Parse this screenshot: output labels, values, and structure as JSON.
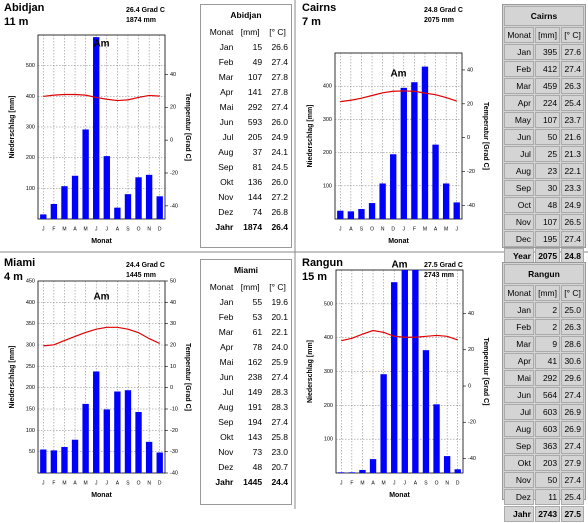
{
  "chart_data": [
    {
      "type": "bar",
      "name": "Abidjan",
      "elevation": "11 m",
      "temp_label": "26.4 Grad C",
      "precip_label": "1874 mm",
      "title": "Am",
      "ylabel": "Niederschlag [mm]",
      "y2label": "Temperatur [Grad C]",
      "xlabel": "Monat",
      "categories": [
        "J",
        "F",
        "M",
        "A",
        "M",
        "J",
        "J",
        "A",
        "S",
        "O",
        "N",
        "D"
      ],
      "series": [
        {
          "color": "#0000ff",
          "values": [
            15,
            49,
            107,
            141,
            292,
            593,
            205,
            37,
            81,
            136,
            144,
            74
          ]
        },
        {
          "type": "line",
          "axis": "y2",
          "color": "#e00000",
          "values": [
            26.6,
            27.4,
            27.8,
            27.8,
            27.4,
            26.0,
            24.9,
            24.1,
            24.5,
            26.0,
            27.2,
            26.8
          ]
        }
      ],
      "ylim": [
        0,
        600
      ],
      "yticks": [
        100,
        200,
        300,
        400,
        500
      ],
      "y2lim": [
        -48,
        64
      ],
      "y2ticks": [
        -40,
        -20,
        0,
        20,
        40
      ],
      "grid": true
    },
    {
      "type": "bar",
      "name": "Cairns",
      "elevation": "7 m",
      "temp_label": "24.8 Grad C",
      "precip_label": "2075 mm",
      "title": "Am",
      "ylabel": "Niederschlag [mm]",
      "y2label": "Temperatur [Grad C]",
      "xlabel": "Monat",
      "categories": [
        "J",
        "A",
        "S",
        "O",
        "N",
        "D",
        "J",
        "F",
        "M",
        "A",
        "M",
        "J"
      ],
      "series": [
        {
          "color": "#0000ff",
          "values": [
            25,
            23,
            30,
            48,
            107,
            195,
            395,
            412,
            459,
            224,
            107,
            50
          ]
        },
        {
          "type": "line",
          "axis": "y2",
          "color": "#e00000",
          "values": [
            21.3,
            22.1,
            23.3,
            24.9,
            26.5,
            27.4,
            27.6,
            27.4,
            26.3,
            25.4,
            23.7,
            21.6
          ]
        }
      ],
      "ylim": [
        0,
        500
      ],
      "yticks": [
        100,
        200,
        300,
        400
      ],
      "y2lim": [
        -48,
        50
      ],
      "y2ticks": [
        -40,
        -20,
        0,
        20,
        40
      ],
      "grid": true
    },
    {
      "type": "bar",
      "name": "Miami",
      "elevation": "4 m",
      "temp_label": "24.4 Grad C",
      "precip_label": "1445 mm",
      "title": "Am",
      "ylabel": "Niederschlag [mm]",
      "y2label": "Temperatur [Grad C]",
      "xlabel": "Monat",
      "categories": [
        "J",
        "F",
        "M",
        "A",
        "M",
        "J",
        "J",
        "A",
        "S",
        "O",
        "N",
        "D"
      ],
      "series": [
        {
          "color": "#0000ff",
          "values": [
            55,
            53,
            61,
            78,
            162,
            238,
            149,
            191,
            194,
            143,
            73,
            48
          ]
        },
        {
          "type": "line",
          "axis": "y2",
          "color": "#e00000",
          "values": [
            19.6,
            20.1,
            22.1,
            24.0,
            25.9,
            27.4,
            28.3,
            28.3,
            27.4,
            25.8,
            23.0,
            20.7
          ]
        }
      ],
      "ylim": [
        0,
        450
      ],
      "yticks": [
        50,
        100,
        150,
        200,
        250,
        300,
        350,
        400,
        450
      ],
      "y2lim": [
        -40,
        50
      ],
      "y2ticks": [
        -40,
        -30,
        -20,
        -10,
        0,
        10,
        20,
        30,
        40,
        50
      ],
      "grid": true
    },
    {
      "type": "bar",
      "name": "Rangun",
      "elevation": "15 m",
      "temp_label": "27.5 Grad C",
      "precip_label": "2743 mm",
      "title": "Am",
      "ylabel": "Niederschlag [mm]",
      "y2label": "Temperatur [Grad C]",
      "xlabel": "Monat",
      "categories": [
        "J",
        "F",
        "M",
        "A",
        "M",
        "J",
        "J",
        "A",
        "S",
        "O",
        "N",
        "D"
      ],
      "series": [
        {
          "color": "#0000ff",
          "values": [
            2,
            2,
            9,
            41,
            292,
            564,
            603,
            603,
            363,
            203,
            50,
            11
          ]
        },
        {
          "type": "line",
          "axis": "y2",
          "color": "#e00000",
          "values": [
            25.0,
            26.3,
            28.6,
            30.6,
            29.6,
            27.4,
            26.9,
            26.9,
            27.4,
            27.9,
            27.4,
            25.4
          ]
        }
      ],
      "ylim": [
        0,
        600
      ],
      "yticks": [
        100,
        200,
        300,
        400,
        500
      ],
      "y2lim": [
        -48,
        64
      ],
      "y2ticks": [
        -40,
        -20,
        0,
        20,
        40
      ],
      "grid": true
    }
  ],
  "tables": [
    {
      "title": "Abidjan",
      "background": "#ffffff",
      "header": [
        "Monat",
        "[mm]",
        "[° C]"
      ],
      "rows": [
        [
          "Jan",
          15,
          26.6
        ],
        [
          "Feb",
          49,
          27.4
        ],
        [
          "Mar",
          107,
          27.8
        ],
        [
          "Apr",
          141,
          27.8
        ],
        [
          "Mai",
          292,
          27.4
        ],
        [
          "Jun",
          593,
          {
            "value": 26,
            "label": "26.0"
          }
        ],
        [
          "Jul",
          205,
          24.9
        ],
        [
          "Aug",
          37,
          24.1
        ],
        [
          "Sep",
          81,
          24.5
        ],
        [
          "Okt",
          136,
          {
            "value": 26,
            "label": "26.0"
          }
        ],
        [
          "Nov",
          144,
          27.2
        ],
        [
          "Dez",
          74,
          26.8
        ]
      ],
      "footer": [
        "Jahr",
        1874,
        26.4
      ]
    },
    {
      "title": "Cairns",
      "background": "#d4d4d4",
      "header": [
        "Monat",
        "[mm]",
        "[° C]"
      ],
      "rows": [
        [
          "Jan",
          395,
          27.6
        ],
        [
          "Feb",
          412,
          27.4
        ],
        [
          "Mar",
          459,
          26.3
        ],
        [
          "Apr",
          224,
          25.4
        ],
        [
          "May",
          107,
          23.7
        ],
        [
          "Jun",
          50,
          21.6
        ],
        [
          "Jul",
          25,
          21.3
        ],
        [
          "Aug",
          23,
          22.1
        ],
        [
          "Sep",
          30,
          23.3
        ],
        [
          "Oct",
          48,
          24.9
        ],
        [
          "Nov",
          107,
          26.5
        ],
        [
          "Dec",
          195,
          27.4
        ]
      ],
      "footer": [
        "Year",
        2075,
        24.8
      ]
    },
    {
      "title": "Miami",
      "background": "#ffffff",
      "header": [
        "Monat",
        "[mm]",
        "[° C]"
      ],
      "rows": [
        [
          "Jan",
          55,
          19.6
        ],
        [
          "Feb",
          53,
          20.1
        ],
        [
          "Mar",
          61,
          22.1
        ],
        [
          "Apr",
          78,
          {
            "value": 24,
            "label": "24.0"
          }
        ],
        [
          "Mai",
          162,
          25.9
        ],
        [
          "Jun",
          238,
          27.4
        ],
        [
          "Jul",
          149,
          28.3
        ],
        [
          "Aug",
          191,
          28.3
        ],
        [
          "Sep",
          194,
          27.4
        ],
        [
          "Okt",
          143,
          25.8
        ],
        [
          "Nov",
          73,
          {
            "value": 23,
            "label": "23.0"
          }
        ],
        [
          "Dez",
          48,
          20.7
        ]
      ],
      "footer": [
        "Jahr",
        1445,
        24.4
      ]
    },
    {
      "title": "Rangun",
      "background": "#d4d4d4",
      "header": [
        "Monat",
        "[mm]",
        "[° C]"
      ],
      "rows": [
        [
          "Jan",
          2,
          {
            "value": 25,
            "label": "25.0"
          }
        ],
        [
          "Feb",
          2,
          26.3
        ],
        [
          "Mar",
          9,
          28.6
        ],
        [
          "Apr",
          41,
          30.6
        ],
        [
          "Mai",
          292,
          29.6
        ],
        [
          "Jun",
          564,
          27.4
        ],
        [
          "Jul",
          603,
          26.9
        ],
        [
          "Aug",
          603,
          26.9
        ],
        [
          "Sep",
          363,
          27.4
        ],
        [
          "Okt",
          203,
          27.9
        ],
        [
          "Nov",
          50,
          27.4
        ],
        [
          "Dez",
          11,
          25.4
        ]
      ],
      "footer": [
        "Jahr",
        2743,
        27.5
      ]
    }
  ]
}
